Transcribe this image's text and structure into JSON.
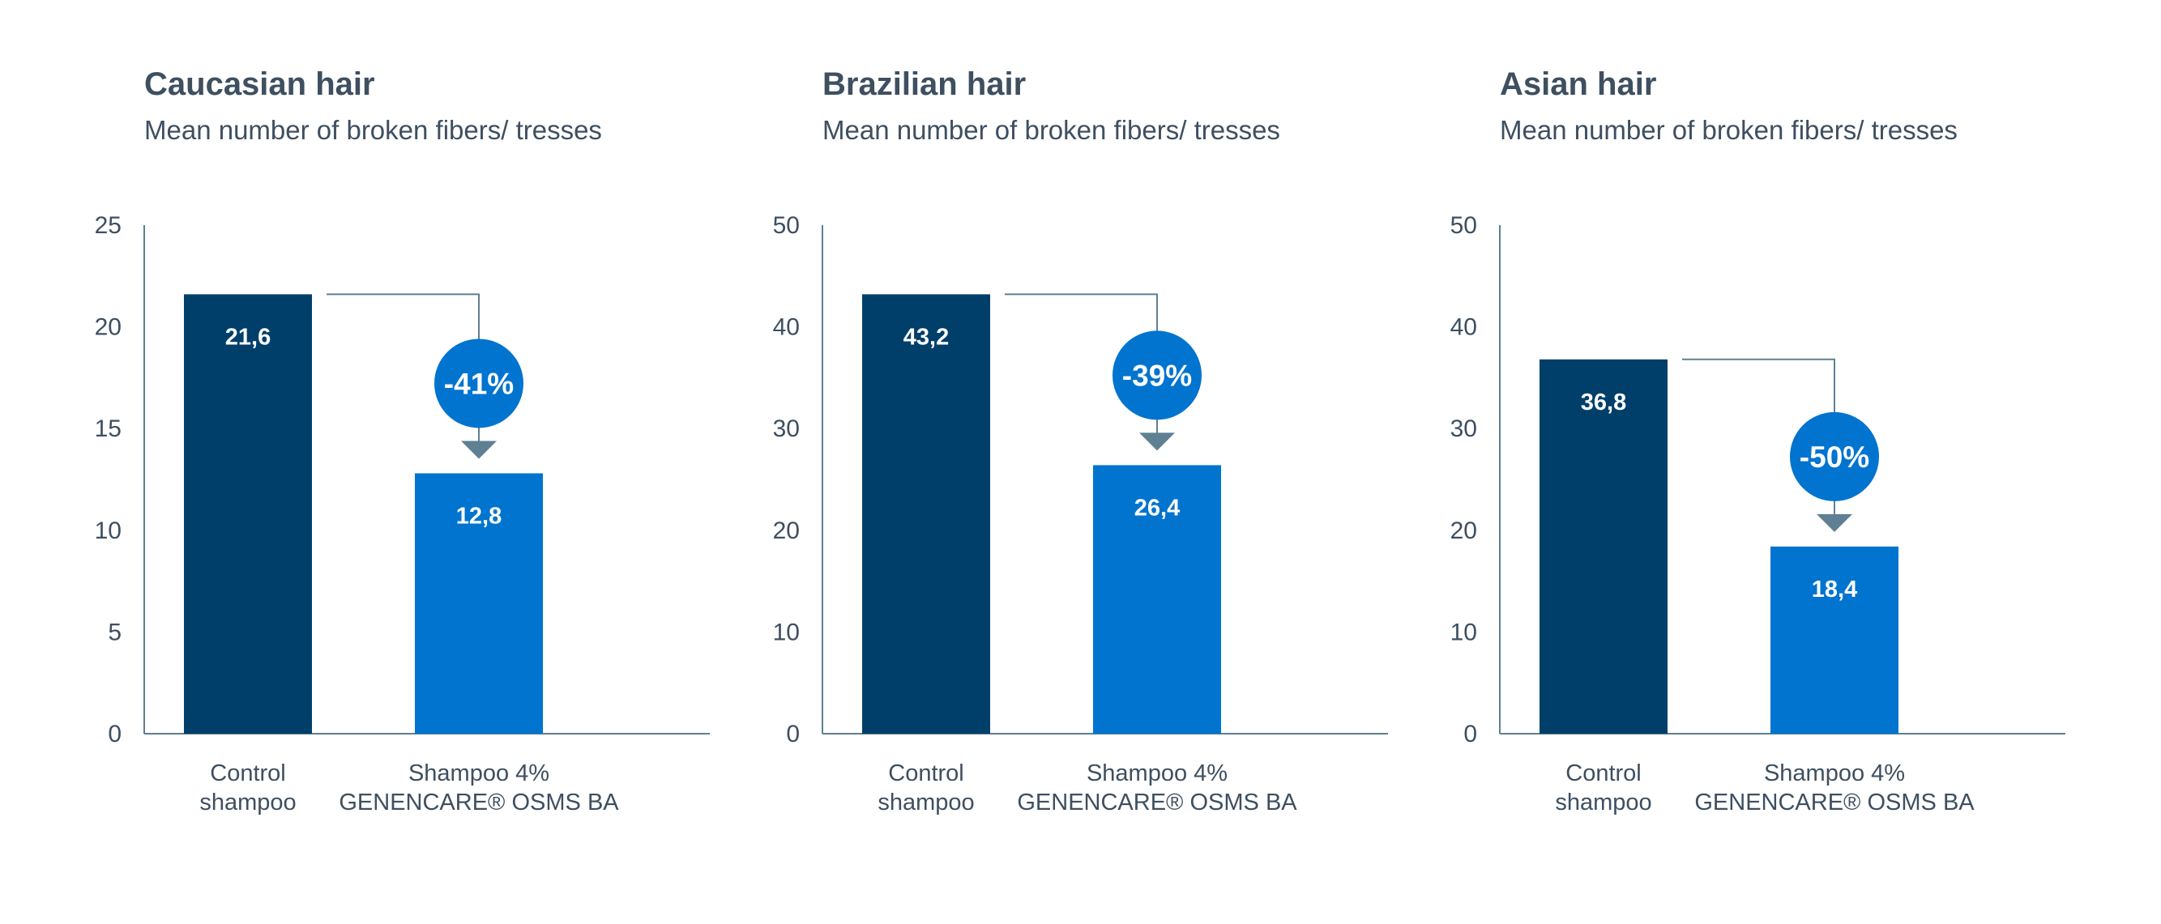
{
  "chart_data": [
    {
      "type": "bar",
      "title": "Caucasian hair",
      "subtitle": "Mean number of broken fibers/ tresses",
      "ylim": [
        0,
        25
      ],
      "yticks": [
        0,
        5,
        10,
        15,
        20,
        25
      ],
      "categories": [
        [
          "Control",
          "shampoo"
        ],
        [
          "Shampoo 4%",
          "GENENCARE® OSMS BA"
        ]
      ],
      "values": [
        21.6,
        12.8
      ],
      "value_labels": [
        "21,6",
        "12,8"
      ],
      "change_label": "-41%",
      "grid": false
    },
    {
      "type": "bar",
      "title": "Brazilian hair",
      "subtitle": "Mean number of broken fibers/ tresses",
      "ylim": [
        0,
        50
      ],
      "yticks": [
        0,
        10,
        20,
        30,
        40,
        50
      ],
      "categories": [
        [
          "Control",
          "shampoo"
        ],
        [
          "Shampoo 4%",
          "GENENCARE® OSMS BA"
        ]
      ],
      "values": [
        43.2,
        26.4
      ],
      "value_labels": [
        "43,2",
        "26,4"
      ],
      "change_label": "-39%",
      "grid": false
    },
    {
      "type": "bar",
      "title": "Asian hair",
      "subtitle": "Mean number of broken fibers/ tresses",
      "ylim": [
        0,
        50
      ],
      "yticks": [
        0,
        10,
        20,
        30,
        40,
        50
      ],
      "categories": [
        [
          "Control",
          "shampoo"
        ],
        [
          "Shampoo 4%",
          "GENENCARE® OSMS BA"
        ]
      ],
      "values": [
        36.8,
        18.4
      ],
      "value_labels": [
        "36,8",
        "18,4"
      ],
      "change_label": "-50%",
      "grid": false
    }
  ],
  "colors": {
    "control_bar": "#003f6a",
    "treatment_bar": "#0074cf",
    "badge": "#0074cf",
    "arrow": "#5f7f92",
    "axis": "#5f7f92",
    "text": "#3e4f60"
  }
}
